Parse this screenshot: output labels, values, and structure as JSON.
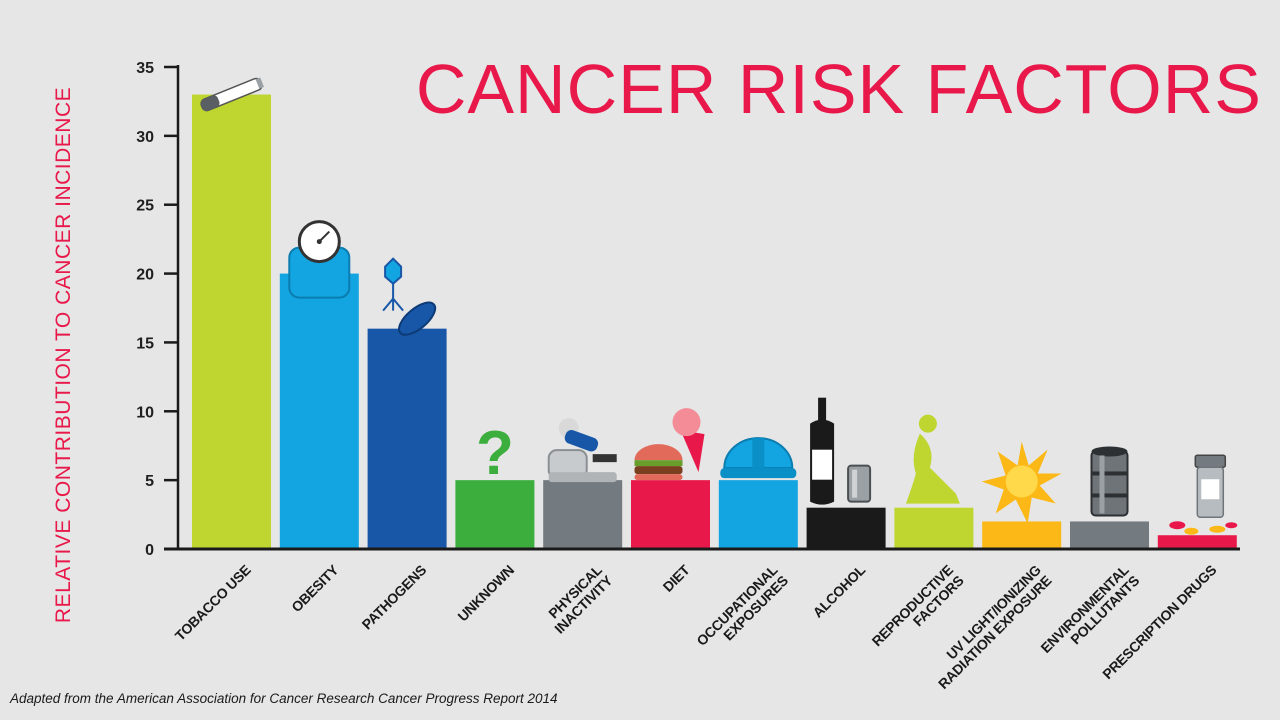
{
  "colors": {
    "title": "#e8194a",
    "axis": "#1a1a1a",
    "background": "#e6e6e6"
  },
  "chart_data": {
    "type": "bar",
    "title": "CANCER RISK FACTORS",
    "xlabel": "",
    "ylabel": "RELATIVE CONTRIBUTION TO CANCER INCIDENCE",
    "ylim": [
      0,
      35
    ],
    "yticks": [
      0,
      5,
      10,
      15,
      20,
      25,
      30,
      35
    ],
    "grid": false,
    "categories": [
      [
        "TOBACCO USE"
      ],
      [
        "OBESITY"
      ],
      [
        "PATHOGENS"
      ],
      [
        "UNKNOWN"
      ],
      [
        "PHYSICAL",
        "INACTIVITY"
      ],
      [
        "DIET"
      ],
      [
        "OCCUPATIONAL",
        "EXPOSURES"
      ],
      [
        "ALCOHOL"
      ],
      [
        "REPRODUCTIVE",
        "FACTORS"
      ],
      [
        "UV LIGHT/IONIZING",
        "RADIATION EXPOSURE"
      ],
      [
        "ENVIRONMENTAL",
        "POLLUTANTS"
      ],
      [
        "PRESCRIPTION DRUGS"
      ]
    ],
    "values": [
      33,
      20,
      16,
      5,
      5,
      5,
      5,
      3,
      3,
      2,
      2,
      1
    ],
    "bar_colors": [
      "#bfd630",
      "#12a5e1",
      "#1857a8",
      "#3cae3e",
      "#737a80",
      "#e8194a",
      "#12a5e1",
      "#1a1a1a",
      "#bfd630",
      "#fbb817",
      "#737a80",
      "#e8194a"
    ],
    "icons": [
      "cigarette-icon",
      "scale-icon",
      "pathogen-icon",
      "question-mark-icon",
      "couch-icon",
      "burger-icon",
      "hard-hat-icon",
      "wine-bottle-icon",
      "kneeling-figure-icon",
      "sun-icon",
      "barrel-icon",
      "pill-bottle-icon"
    ]
  },
  "source_note": "Adapted from the American Association for Cancer Research Cancer Progress Report 2014"
}
